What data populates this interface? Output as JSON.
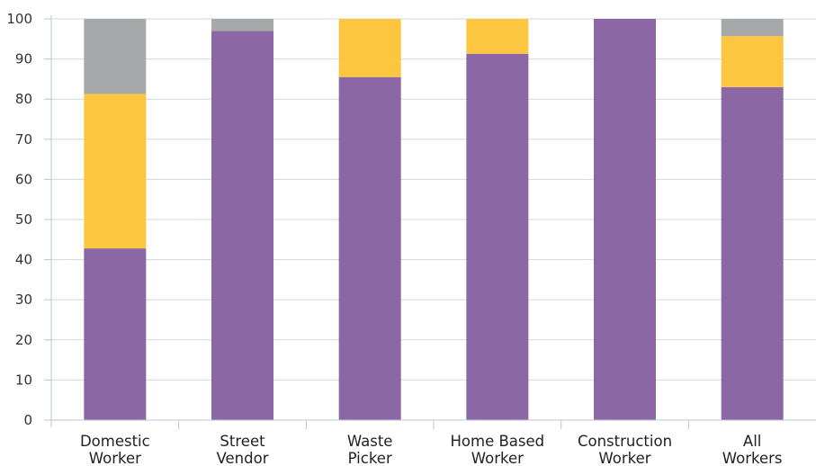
{
  "chart_data": {
    "type": "bar",
    "stacked": true,
    "title": "",
    "xlabel": "",
    "ylabel": "",
    "ylim": [
      0,
      100
    ],
    "y_ticks": [
      0,
      10,
      20,
      30,
      40,
      50,
      60,
      70,
      80,
      90,
      100
    ],
    "grid": "horizontal",
    "categories": [
      [
        "Domestic",
        "Worker"
      ],
      [
        "Street",
        "Vendor"
      ],
      [
        "Waste",
        "Picker"
      ],
      [
        "Home Based",
        "Worker"
      ],
      [
        "Construction",
        "Worker"
      ],
      [
        "All",
        "Workers"
      ]
    ],
    "series": [
      {
        "color": "#8B67A5",
        "values": [
          42.8,
          97.0,
          85.5,
          91.3,
          100.0,
          83.0
        ]
      },
      {
        "color": "#FDC640",
        "values": [
          38.5,
          0.0,
          14.5,
          8.7,
          0.0,
          12.7
        ]
      },
      {
        "color": "#A7A8AA",
        "values": [
          18.7,
          3.0,
          0.0,
          0.0,
          0.0,
          4.3
        ]
      }
    ],
    "colors": {
      "grid": "#CDD9E3",
      "axis": "#B8C7D3",
      "text": "#222222"
    }
  }
}
